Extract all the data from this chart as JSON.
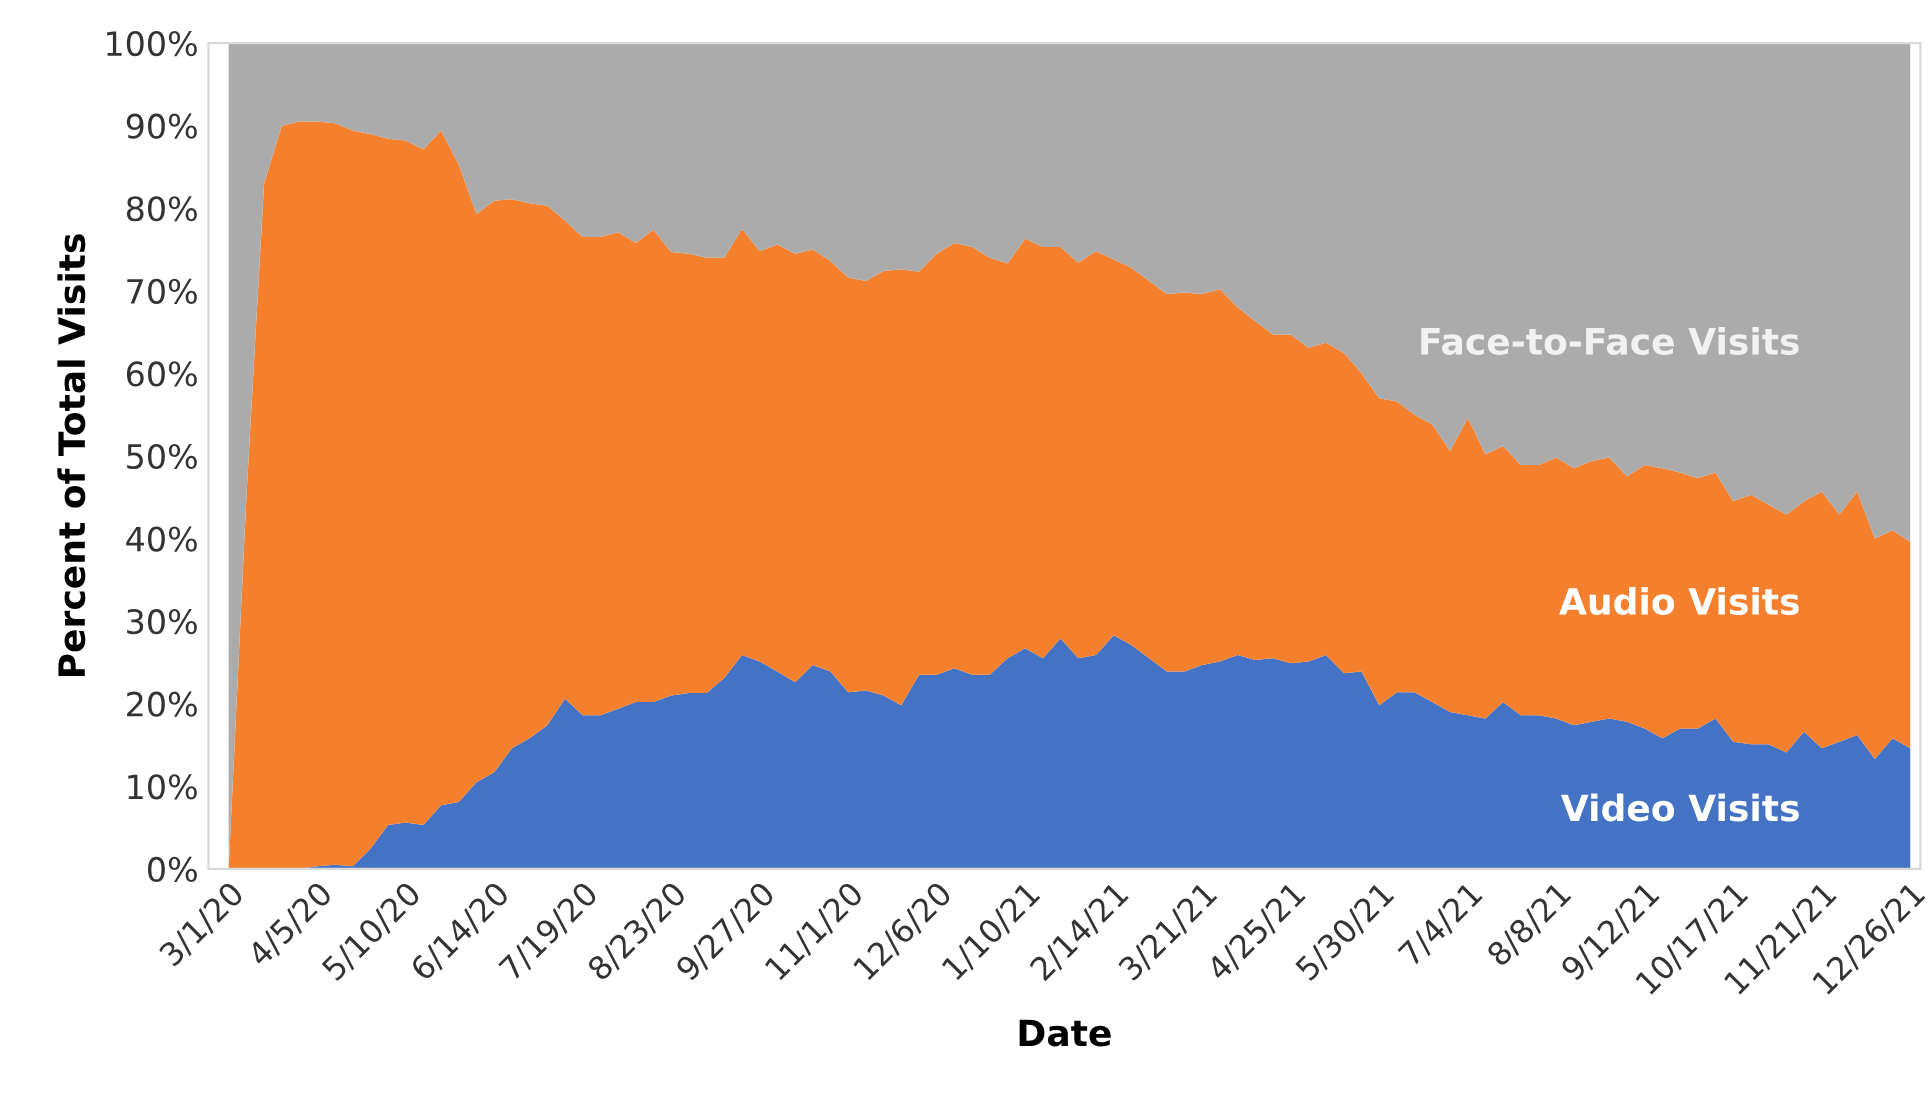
{
  "chart_data": {
    "type": "area",
    "stacked": true,
    "xlabel": "Date",
    "ylabel": "Percent of Total Visits",
    "x": [
      "2020-03-01",
      "2020-03-08",
      "2020-03-15",
      "2020-03-22",
      "2020-03-29",
      "2020-04-05",
      "2020-04-12",
      "2020-04-19",
      "2020-04-26",
      "2020-05-03",
      "2020-05-10",
      "2020-05-17",
      "2020-05-24",
      "2020-05-31",
      "2020-06-07",
      "2020-06-14",
      "2020-06-21",
      "2020-06-28",
      "2020-07-05",
      "2020-07-12",
      "2020-07-19",
      "2020-07-26",
      "2020-08-02",
      "2020-08-09",
      "2020-08-16",
      "2020-08-23",
      "2020-08-30",
      "2020-09-06",
      "2020-09-13",
      "2020-09-20",
      "2020-09-27",
      "2020-10-04",
      "2020-10-11",
      "2020-10-18",
      "2020-10-25",
      "2020-11-01",
      "2020-11-08",
      "2020-11-15",
      "2020-11-22",
      "2020-11-29",
      "2020-12-06",
      "2020-12-13",
      "2020-12-20",
      "2020-12-27",
      "2021-01-03",
      "2021-01-10",
      "2021-01-17",
      "2021-01-24",
      "2021-01-31",
      "2021-02-07",
      "2021-02-14",
      "2021-02-21",
      "2021-02-28",
      "2021-03-07",
      "2021-03-14",
      "2021-03-21",
      "2021-03-28",
      "2021-04-04",
      "2021-04-11",
      "2021-04-18",
      "2021-04-25",
      "2021-05-02",
      "2021-05-09",
      "2021-05-16",
      "2021-05-23",
      "2021-05-30",
      "2021-06-06",
      "2021-06-13",
      "2021-06-20",
      "2021-06-27",
      "2021-07-04",
      "2021-07-11",
      "2021-07-18",
      "2021-07-25",
      "2021-08-01",
      "2021-08-08",
      "2021-08-15",
      "2021-08-22",
      "2021-08-29",
      "2021-09-05",
      "2021-09-12",
      "2021-09-19",
      "2021-09-26",
      "2021-10-03",
      "2021-10-10",
      "2021-10-17",
      "2021-10-24",
      "2021-10-31",
      "2021-11-07",
      "2021-11-14",
      "2021-11-21",
      "2021-11-28",
      "2021-12-05",
      "2021-12-12",
      "2021-12-19",
      "2021-12-26"
    ],
    "series": [
      {
        "name": "Video Visits",
        "color": "#4472c4",
        "values": [
          0,
          0,
          0,
          0,
          0,
          0.3,
          0.5,
          0.3,
          2.4,
          5.3,
          5.6,
          5.3,
          7.7,
          8.1,
          10.5,
          11.7,
          14.6,
          15.8,
          17.4,
          20.6,
          18.6,
          18.6,
          19.4,
          20.2,
          20.2,
          21.0,
          21.3,
          21.3,
          23.1,
          25.9,
          25.1,
          23.9,
          22.6,
          24.7,
          23.9,
          21.4,
          21.6,
          21.0,
          19.8,
          23.5,
          23.5,
          24.3,
          23.5,
          23.5,
          25.5,
          26.7,
          25.5,
          27.9,
          25.5,
          25.9,
          28.3,
          27.1,
          25.5,
          23.9,
          23.9,
          24.7,
          25.1,
          25.9,
          25.3,
          25.5,
          24.9,
          25.1,
          25.9,
          23.7,
          23.9,
          19.8,
          21.4,
          21.4,
          20.2,
          19.0,
          18.6,
          18.2,
          20.2,
          18.6,
          18.6,
          18.2,
          17.4,
          17.8,
          18.2,
          17.8,
          17.0,
          15.8,
          17.0,
          17.0,
          18.2,
          15.4,
          15.1,
          15.1,
          14.1,
          16.6,
          14.6,
          15.4,
          16.2,
          13.3,
          15.8,
          14.6
        ]
      },
      {
        "name": "Audio Visits",
        "color": "#f4802e",
        "values": [
          0,
          45,
          83,
          90,
          90.5,
          90.2,
          89.8,
          89.1,
          86.6,
          83.1,
          82.6,
          81.8,
          81.7,
          77.2,
          68.8,
          69.2,
          66.5,
          64.8,
          62.9,
          57.9,
          57.9,
          57.9,
          57.7,
          55.6,
          57.2,
          53.7,
          53.2,
          52.7,
          50.9,
          51.6,
          49.7,
          51.7,
          51.9,
          50.3,
          49.7,
          50.2,
          49.6,
          51.4,
          52.8,
          48.8,
          51.0,
          51.5,
          51.8,
          50.5,
          47.8,
          49.6,
          49.8,
          47.4,
          47.9,
          48.9,
          45.5,
          45.7,
          45.7,
          45.7,
          45.9,
          44.9,
          45.1,
          42.1,
          41.0,
          39.2,
          39.8,
          38.0,
          37.8,
          38.8,
          36.1,
          37.2,
          35.2,
          33.6,
          33.6,
          31.6,
          36.0,
          32.0,
          31.0,
          30.3,
          30.3,
          31.6,
          31.1,
          31.6,
          31.6,
          29.7,
          31.9,
          32.7,
          31.0,
          30.3,
          29.8,
          29.1,
          30.2,
          29.0,
          28.8,
          27.9,
          31.1,
          27.5,
          29.5,
          26.7,
          25.2,
          25.0
        ]
      },
      {
        "name": "Face-to-Face Visits",
        "color": "#ababab",
        "values": [
          100,
          55,
          17,
          10,
          9.5,
          9.5,
          9.7,
          10.6,
          11.0,
          11.6,
          11.8,
          12.9,
          10.6,
          14.7,
          20.7,
          19.1,
          18.9,
          19.4,
          19.7,
          21.5,
          23.5,
          23.5,
          22.9,
          24.2,
          22.6,
          25.3,
          25.5,
          26.0,
          26.0,
          22.5,
          25.2,
          24.4,
          25.5,
          25,
          26.4,
          28.4,
          28.8,
          27.6,
          27.4,
          27.7,
          25.5,
          24.2,
          24.7,
          26.0,
          26.7,
          23.7,
          24.7,
          24.7,
          26.6,
          25.2,
          26.2,
          27.2,
          28.8,
          30.4,
          30.2,
          30.4,
          29.8,
          32.0,
          33.7,
          35.3,
          35.3,
          36.9,
          36.3,
          37.5,
          40.0,
          43.0,
          43.4,
          45.0,
          46.2,
          49.4,
          45.4,
          49.8,
          48.8,
          51.1,
          51.1,
          50.2,
          51.5,
          50.6,
          50.2,
          52.5,
          51.1,
          51.5,
          52.0,
          52.7,
          52.0,
          55.5,
          54.7,
          55.9,
          57.1,
          55.5,
          54.3,
          57.1,
          54.3,
          60.0,
          59.0,
          60.4
        ]
      }
    ],
    "xlim": [
      "2020-02-22",
      "2021-12-30"
    ],
    "xticks": [
      {
        "value": "2020-03-01",
        "label": "3/1/20"
      },
      {
        "value": "2020-04-05",
        "label": "4/5/20"
      },
      {
        "value": "2020-05-10",
        "label": "5/10/20"
      },
      {
        "value": "2020-06-14",
        "label": "6/14/20"
      },
      {
        "value": "2020-07-19",
        "label": "7/19/20"
      },
      {
        "value": "2020-08-23",
        "label": "8/23/20"
      },
      {
        "value": "2020-09-27",
        "label": "9/27/20"
      },
      {
        "value": "2020-11-01",
        "label": "11/1/20"
      },
      {
        "value": "2020-12-06",
        "label": "12/6/20"
      },
      {
        "value": "2021-01-10",
        "label": "1/10/21"
      },
      {
        "value": "2021-02-14",
        "label": "2/14/21"
      },
      {
        "value": "2021-03-21",
        "label": "3/21/21"
      },
      {
        "value": "2021-04-25",
        "label": "4/25/21"
      },
      {
        "value": "2021-05-30",
        "label": "5/30/21"
      },
      {
        "value": "2021-07-04",
        "label": "7/4/21"
      },
      {
        "value": "2021-08-08",
        "label": "8/8/21"
      },
      {
        "value": "2021-09-12",
        "label": "9/12/21"
      },
      {
        "value": "2021-10-17",
        "label": "10/17/21"
      },
      {
        "value": "2021-11-21",
        "label": "11/21/21"
      },
      {
        "value": "2021-12-26",
        "label": "12/26/21"
      }
    ],
    "ylim": [
      0,
      100
    ],
    "yticks": [
      {
        "value": 0,
        "label": "0%"
      },
      {
        "value": 10,
        "label": "10%"
      },
      {
        "value": 20,
        "label": "20%"
      },
      {
        "value": 30,
        "label": "30%"
      },
      {
        "value": 40,
        "label": "40%"
      },
      {
        "value": 50,
        "label": "50%"
      },
      {
        "value": 60,
        "label": "60%"
      },
      {
        "value": 70,
        "label": "70%"
      },
      {
        "value": 80,
        "label": "80%"
      },
      {
        "value": 90,
        "label": "90%"
      },
      {
        "value": 100,
        "label": "100%"
      }
    ],
    "grid": false,
    "legend": false
  }
}
